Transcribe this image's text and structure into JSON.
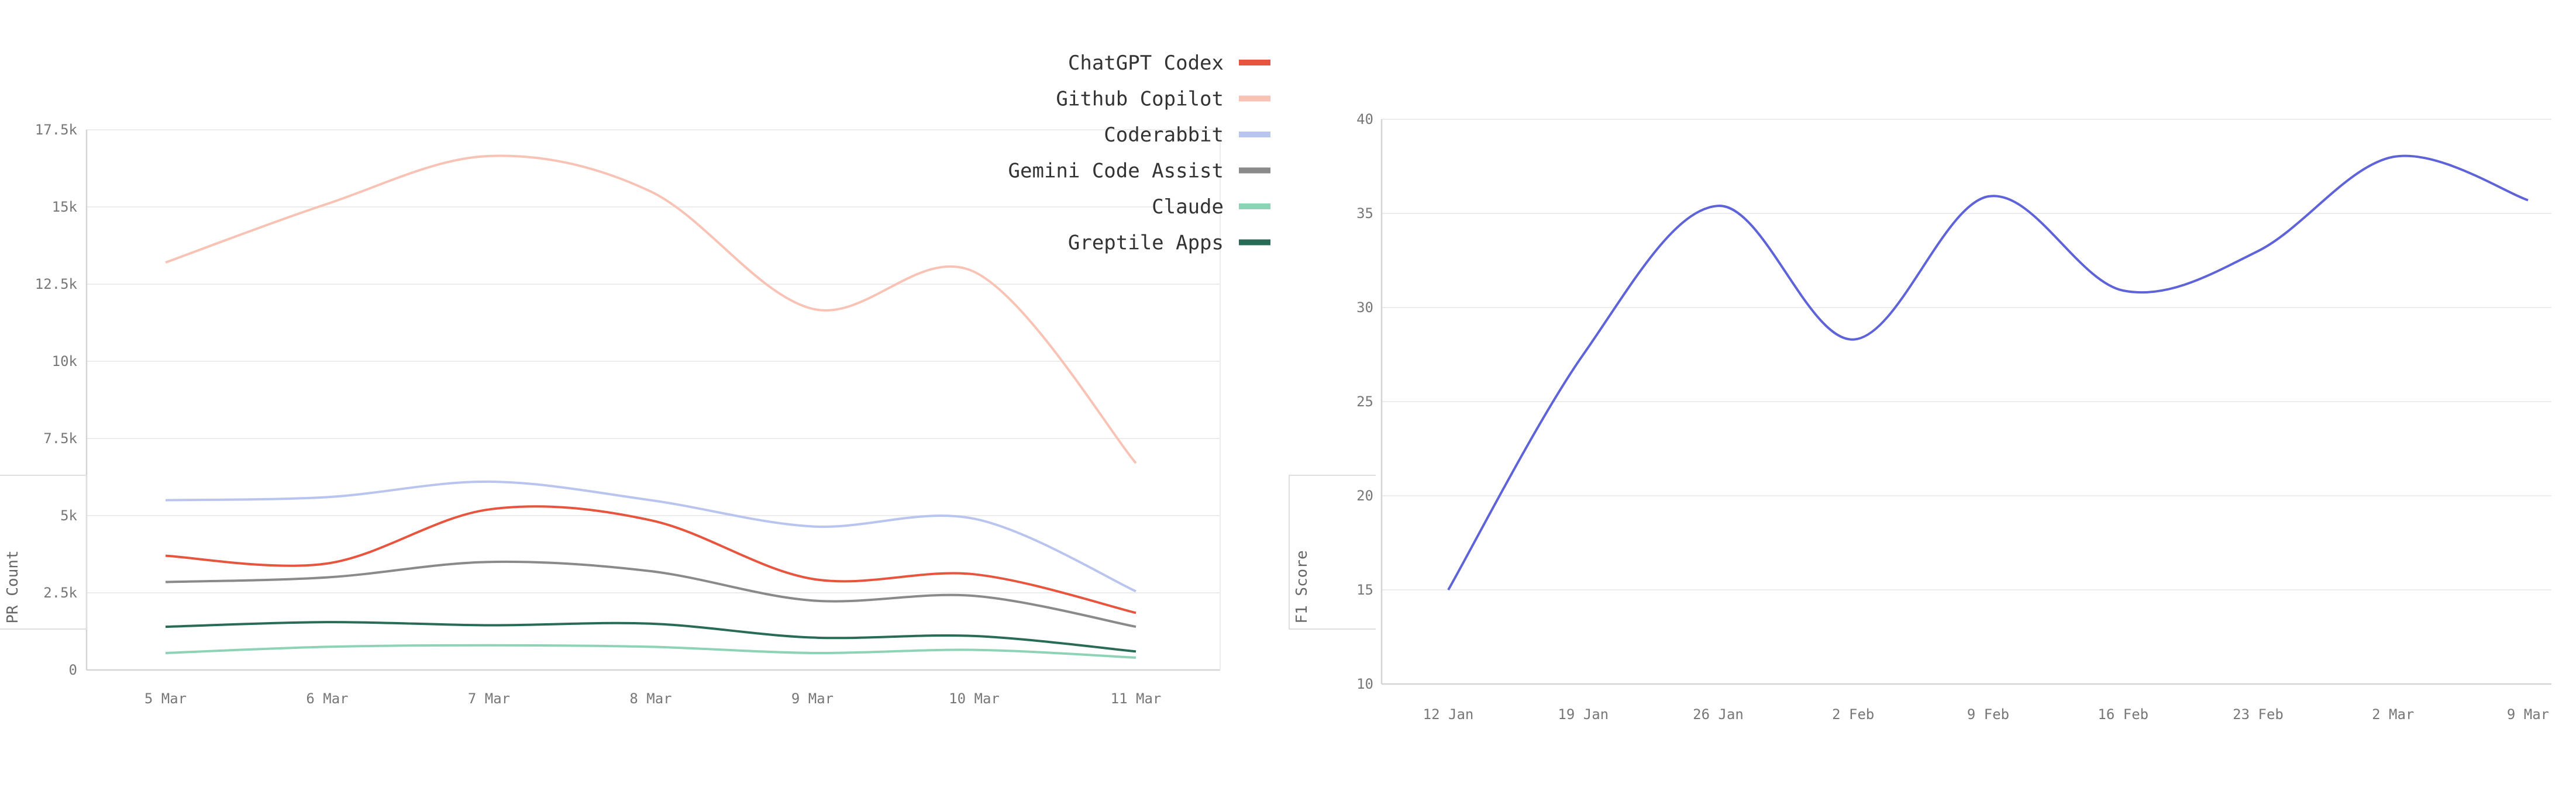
{
  "chart_data": [
    {
      "type": "line",
      "title": "",
      "xlabel": "",
      "ylabel": "PR Count",
      "categories": [
        "5 Mar",
        "6 Mar",
        "7 Mar",
        "8 Mar",
        "9 Mar",
        "10 Mar",
        "11 Mar"
      ],
      "y_ticks": [
        "0",
        "2.5k",
        "5k",
        "7.5k",
        "10k",
        "12.5k",
        "15k",
        "17.5k"
      ],
      "ylim": [
        0,
        17500
      ],
      "grid": true,
      "legend_position": "top-right",
      "series": [
        {
          "name": "ChatGPT Codex",
          "color": "#e8553e",
          "values": [
            3700,
            3450,
            5200,
            4850,
            2950,
            3100,
            1850
          ]
        },
        {
          "name": "Github Copilot",
          "color": "#f8c3b5",
          "values": [
            13200,
            15100,
            16650,
            15500,
            11700,
            12900,
            6700
          ]
        },
        {
          "name": "Coderabbit",
          "color": "#b9c4ef",
          "values": [
            5500,
            5600,
            6100,
            5500,
            4650,
            4900,
            2550
          ]
        },
        {
          "name": "Gemini Code Assist",
          "color": "#8a8a8a",
          "values": [
            2850,
            3000,
            3500,
            3200,
            2250,
            2400,
            1400
          ]
        },
        {
          "name": "Claude",
          "color": "#8fd3b6",
          "values": [
            550,
            750,
            800,
            750,
            550,
            650,
            400
          ]
        },
        {
          "name": "Greptile Apps",
          "color": "#2a6b57",
          "values": [
            1400,
            1550,
            1450,
            1500,
            1050,
            1100,
            600
          ]
        }
      ]
    },
    {
      "type": "line",
      "title": "",
      "xlabel": "",
      "ylabel": "F1 Score",
      "categories": [
        "12 Jan",
        "19 Jan",
        "26 Jan",
        "2 Feb",
        "9 Feb",
        "16 Feb",
        "23 Feb",
        "2 Mar",
        "9 Mar"
      ],
      "y_ticks": [
        "10",
        "15",
        "20",
        "25",
        "30",
        "35",
        "40"
      ],
      "ylim": [
        10,
        40
      ],
      "grid": true,
      "series": [
        {
          "name": "",
          "color": "#5f63d8",
          "values": [
            15,
            27.5,
            35.4,
            28.3,
            35.9,
            30.9,
            33,
            38,
            35.7
          ]
        }
      ]
    }
  ]
}
